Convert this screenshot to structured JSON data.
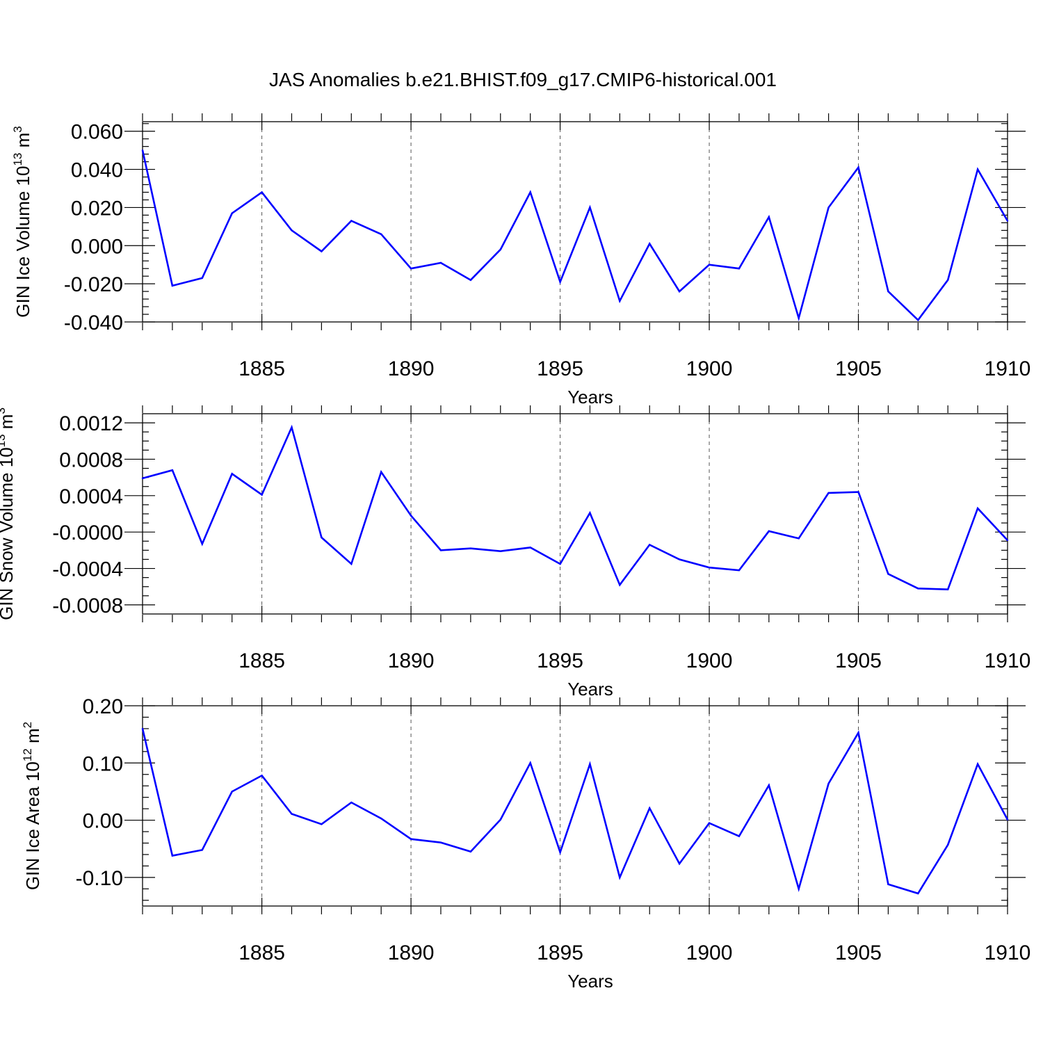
{
  "colors": {
    "series": "#0000ff"
  },
  "chart_data": {
    "title": "JAS Anomalies b.e21.BHIST.f09_g17.CMIP6-historical.001",
    "panels": [
      {
        "type": "line",
        "ylabel": "GIN Ice Volume 10",
        "ylabel_exp": "13",
        "ylabel_unit": "m",
        "ylabel_unit_exp": "3",
        "xlabel": "Years",
        "xlim": [
          1881,
          1910
        ],
        "ylim": [
          -0.04,
          0.065
        ],
        "xticks": [
          "1885",
          "1890",
          "1895",
          "1900",
          "1905",
          "1910"
        ],
        "yticks": [
          -0.04,
          -0.02,
          0.0,
          0.02,
          0.04,
          0.06
        ],
        "yticklabels": [
          "-0.040",
          "-0.020",
          "0.000",
          "0.020",
          "0.040",
          "0.060"
        ],
        "yminor_step": 0.004,
        "grid": "x-dashed",
        "x": [
          1881,
          1882,
          1883,
          1884,
          1885,
          1886,
          1887,
          1888,
          1889,
          1890,
          1891,
          1892,
          1893,
          1894,
          1895,
          1896,
          1897,
          1898,
          1899,
          1900,
          1901,
          1902,
          1903,
          1904,
          1905,
          1906,
          1907,
          1908,
          1909,
          1910
        ],
        "values": [
          0.05,
          -0.021,
          -0.017,
          0.017,
          0.028,
          0.008,
          -0.003,
          0.013,
          0.006,
          -0.012,
          -0.009,
          -0.018,
          -0.002,
          0.028,
          -0.019,
          0.02,
          -0.029,
          0.001,
          -0.024,
          -0.01,
          -0.012,
          0.015,
          -0.038,
          0.02,
          0.041,
          -0.024,
          -0.039,
          -0.018,
          0.04,
          0.013
        ]
      },
      {
        "type": "line",
        "ylabel": "GIN Snow Volume 10",
        "ylabel_exp": "13",
        "ylabel_unit": "m",
        "ylabel_unit_exp": "3",
        "xlabel": "Years",
        "xlim": [
          1881,
          1910
        ],
        "ylim": [
          -0.0009,
          0.0013
        ],
        "xticks": [
          "1885",
          "1890",
          "1895",
          "1900",
          "1905",
          "1910"
        ],
        "yticks": [
          -0.0008,
          -0.0004,
          0.0,
          0.0004,
          0.0008,
          0.0012
        ],
        "yticklabels": [
          "-0.0008",
          "-0.0004",
          "-0.0000",
          "0.0004",
          "0.0008",
          "0.0012"
        ],
        "yminor_step": 0.0001,
        "grid": "x-dashed",
        "x": [
          1881,
          1882,
          1883,
          1884,
          1885,
          1886,
          1887,
          1888,
          1889,
          1890,
          1891,
          1892,
          1893,
          1894,
          1895,
          1896,
          1897,
          1898,
          1899,
          1900,
          1901,
          1902,
          1903,
          1904,
          1905,
          1906,
          1907,
          1908,
          1909,
          1910
        ],
        "values": [
          0.00059,
          0.00068,
          -0.00013,
          0.00064,
          0.00041,
          0.00115,
          -6e-05,
          -0.00035,
          0.00066,
          0.00018,
          -0.0002,
          -0.00018,
          -0.00021,
          -0.00017,
          -0.00035,
          0.00021,
          -0.00058,
          -0.00014,
          -0.0003,
          -0.00039,
          -0.00042,
          1e-05,
          -7e-05,
          0.00043,
          0.00044,
          -0.00046,
          -0.00062,
          -0.00063,
          0.00026,
          -9e-05
        ]
      },
      {
        "type": "line",
        "ylabel": "GIN Ice Area 10",
        "ylabel_exp": "12",
        "ylabel_unit": "m",
        "ylabel_unit_exp": "2",
        "xlabel": "Years",
        "xlim": [
          1881,
          1910
        ],
        "ylim": [
          -0.15,
          0.2
        ],
        "xticks": [
          "1885",
          "1890",
          "1895",
          "1900",
          "1905",
          "1910"
        ],
        "yticks": [
          -0.1,
          0.0,
          0.1,
          0.2
        ],
        "yticklabels": [
          "-0.10",
          "0.00",
          "0.10",
          "0.20"
        ],
        "yminor_step": 0.02,
        "grid": "x-dashed",
        "x": [
          1881,
          1882,
          1883,
          1884,
          1885,
          1886,
          1887,
          1888,
          1889,
          1890,
          1891,
          1892,
          1893,
          1894,
          1895,
          1896,
          1897,
          1898,
          1899,
          1900,
          1901,
          1902,
          1903,
          1904,
          1905,
          1906,
          1907,
          1908,
          1909,
          1910
        ],
        "values": [
          0.16,
          -0.062,
          -0.052,
          0.05,
          0.078,
          0.011,
          -0.007,
          0.031,
          0.003,
          -0.033,
          -0.039,
          -0.055,
          0.001,
          0.1,
          -0.056,
          0.098,
          -0.1,
          0.021,
          -0.076,
          -0.005,
          -0.028,
          0.061,
          -0.12,
          0.064,
          0.153,
          -0.112,
          -0.128,
          -0.043,
          0.098,
          0.001
        ]
      }
    ]
  }
}
